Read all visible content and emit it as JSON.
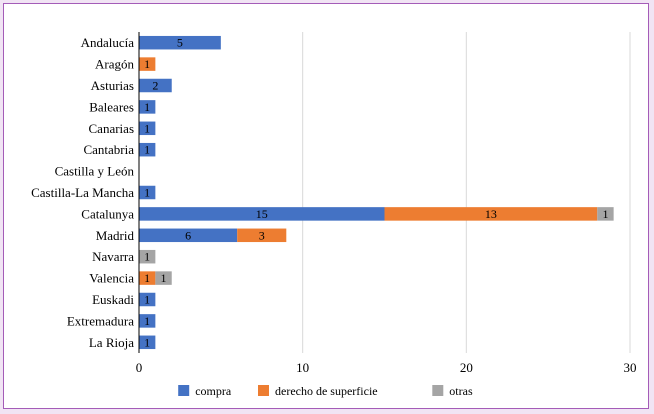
{
  "chart_data": {
    "type": "bar",
    "orientation": "horizontal",
    "stacked": true,
    "categories": [
      "Andalucía",
      "Aragón",
      "Asturias",
      "Baleares",
      "Canarias",
      "Cantabria",
      "Castilla y León",
      "Castilla-La Mancha",
      "Catalunya",
      "Madrid",
      "Navarra",
      "Valencia",
      "Euskadi",
      "Extremadura",
      "La Rioja"
    ],
    "series": [
      {
        "name": "compra",
        "color": "#4472c4",
        "values": [
          5,
          0,
          2,
          1,
          1,
          1,
          0,
          1,
          15,
          6,
          0,
          0,
          1,
          1,
          1
        ]
      },
      {
        "name": "derecho de superficie",
        "color": "#ed7d31",
        "values": [
          0,
          1,
          0,
          0,
          0,
          0,
          0,
          0,
          13,
          3,
          0,
          1,
          0,
          0,
          0
        ]
      },
      {
        "name": "otras",
        "color": "#a5a5a5",
        "values": [
          0,
          0,
          0,
          0,
          0,
          0,
          0,
          0,
          1,
          0,
          1,
          1,
          0,
          0,
          0
        ]
      }
    ],
    "xlim": [
      0,
      30
    ],
    "xticks": [
      0,
      10,
      20,
      30
    ],
    "grid": "vertical",
    "legend_position": "bottom"
  }
}
